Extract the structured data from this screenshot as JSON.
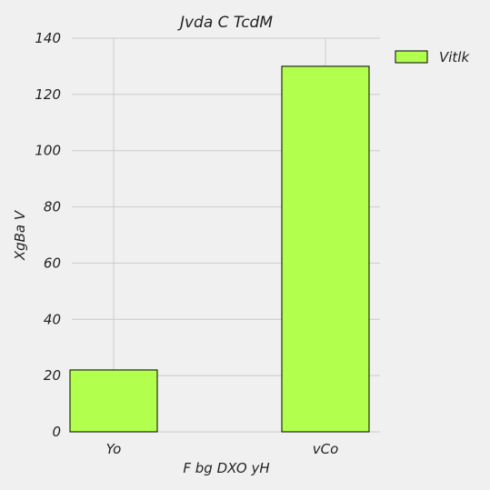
{
  "chart_data": {
    "type": "bar",
    "title": "Jvda  C TcdM",
    "xlabel": "F bg DXO yH",
    "ylabel": "XgBa V",
    "categories": [
      "Yo",
      "vCo"
    ],
    "series": [
      {
        "name": "Vitlk",
        "values": [
          22,
          130
        ]
      }
    ],
    "ylim": [
      0,
      140
    ],
    "yticks": [
      0,
      20,
      40,
      60,
      80,
      100,
      120,
      140
    ],
    "grid": true,
    "legend": "top-right",
    "colors": {
      "bar": "#b3ff4d",
      "bar_edge": "#000000",
      "grid": "#cbcbcb",
      "background": "#f0f0f0"
    }
  }
}
